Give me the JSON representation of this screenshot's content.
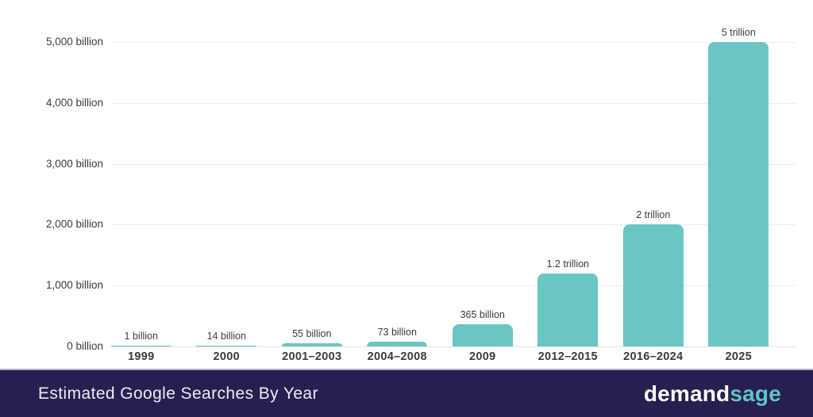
{
  "chart_data": {
    "type": "bar",
    "title": "Estimated Google Searches By Year",
    "categories": [
      "1999",
      "2000",
      "2001–2003",
      "2004–2008",
      "2009",
      "2012–2015",
      "2016–2024",
      "2025"
    ],
    "values_billions": [
      1,
      14,
      55,
      73,
      365,
      1200,
      2000,
      5000
    ],
    "bar_labels": [
      "1 billion",
      "14 billion",
      "55 billion",
      "73 billion",
      "365 billion",
      "1.2 trillion",
      "2 trillion",
      "5 trillion"
    ],
    "y_tick_labels": [
      "5,000 billion",
      "4,000 billion",
      "3,000 billion",
      "2,000 billion",
      "1,000 billion",
      "0 billion"
    ],
    "y_tick_values": [
      5000,
      4000,
      3000,
      2000,
      1000,
      0
    ],
    "ylim": [
      0,
      5000
    ],
    "xlabel": "",
    "ylabel": "",
    "grid": true,
    "legend": "none",
    "bar_color": "#6ac6c2",
    "label_color": "#3b3b3b",
    "gridline_color": "#ececec"
  },
  "footer": {
    "title": "Estimated Google Searches By Year",
    "background_color": "#261f4f",
    "logo": {
      "part1": "demand",
      "part2": "sage",
      "part1_color": "#ffffff",
      "part2_color": "#5fc4c4"
    }
  }
}
